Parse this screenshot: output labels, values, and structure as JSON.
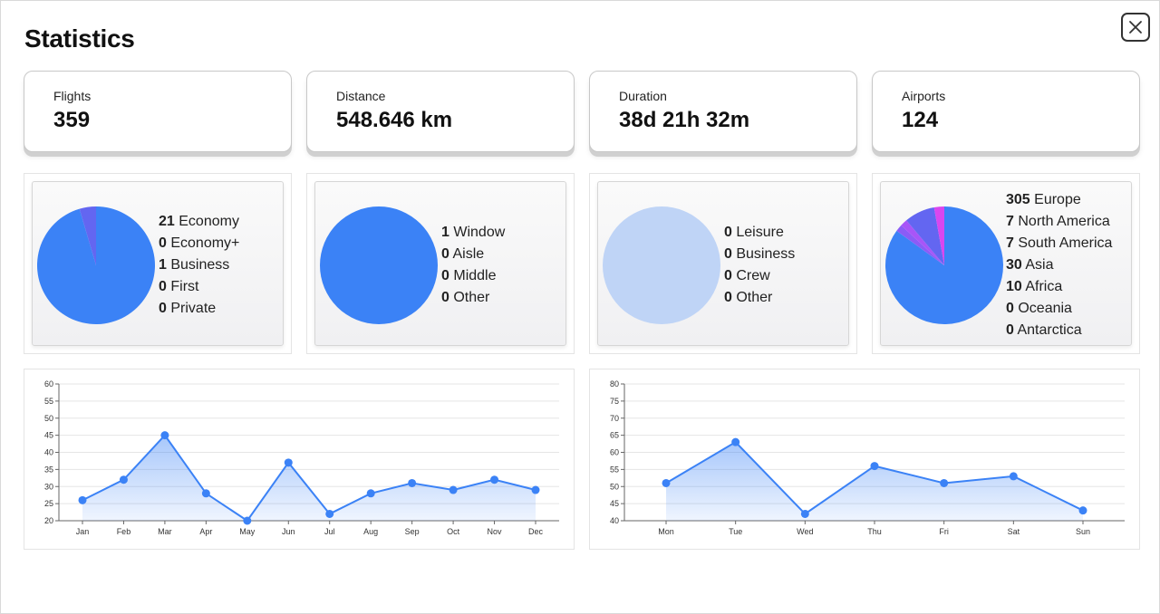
{
  "header": {
    "title": "Statistics",
    "close_icon": "close-icon"
  },
  "stats": [
    {
      "label": "Flights",
      "value": "359"
    },
    {
      "label": "Distance",
      "value": "548.646 km"
    },
    {
      "label": "Duration",
      "value": "38d 21h 32m"
    },
    {
      "label": "Airports",
      "value": "124"
    }
  ],
  "pies": {
    "seat_class": {
      "items": [
        {
          "count": "21",
          "label": "Economy"
        },
        {
          "count": "0",
          "label": "Economy+"
        },
        {
          "count": "1",
          "label": "Business"
        },
        {
          "count": "0",
          "label": "First"
        },
        {
          "count": "0",
          "label": "Private"
        }
      ],
      "colors": [
        "#3b82f6",
        "#4f6fe8",
        "#6366f1",
        "#8b5cf6",
        "#a855f7"
      ]
    },
    "seat_type": {
      "items": [
        {
          "count": "1",
          "label": "Window"
        },
        {
          "count": "0",
          "label": "Aisle"
        },
        {
          "count": "0",
          "label": "Middle"
        },
        {
          "count": "0",
          "label": "Other"
        }
      ],
      "colors": [
        "#3b82f6",
        "#6366f1",
        "#8b5cf6",
        "#a855f7"
      ]
    },
    "reason": {
      "items": [
        {
          "count": "0",
          "label": "Leisure"
        },
        {
          "count": "0",
          "label": "Business"
        },
        {
          "count": "0",
          "label": "Crew"
        },
        {
          "count": "0",
          "label": "Other"
        }
      ],
      "empty_color": "#bfd4f6"
    },
    "continents": {
      "items": [
        {
          "count": "305",
          "label": "Europe"
        },
        {
          "count": "7",
          "label": "North America"
        },
        {
          "count": "7",
          "label": "South America"
        },
        {
          "count": "30",
          "label": "Asia"
        },
        {
          "count": "10",
          "label": "Africa"
        },
        {
          "count": "0",
          "label": "Oceania"
        },
        {
          "count": "0",
          "label": "Antarctica"
        }
      ],
      "colors": [
        "#3b82f6",
        "#8b5cf6",
        "#a855f7",
        "#6366f1",
        "#d946ef",
        "#c026d3",
        "#9333ea"
      ]
    }
  },
  "chart_data": [
    {
      "type": "area",
      "title": "",
      "categories": [
        "Jan",
        "Feb",
        "Mar",
        "Apr",
        "May",
        "Jun",
        "Jul",
        "Aug",
        "Sep",
        "Oct",
        "Nov",
        "Dec"
      ],
      "values": [
        26,
        32,
        45,
        28,
        20,
        37,
        22,
        28,
        31,
        29,
        32,
        29
      ],
      "ylim": [
        20,
        60
      ],
      "yticks": [
        "20",
        "25",
        "30",
        "35",
        "40",
        "45",
        "50",
        "55",
        "60"
      ],
      "grid": true,
      "color": "#3b82f6"
    },
    {
      "type": "area",
      "title": "",
      "categories": [
        "Mon",
        "Tue",
        "Wed",
        "Thu",
        "Fri",
        "Sat",
        "Sun"
      ],
      "values": [
        51,
        63,
        42,
        56,
        51,
        53,
        43
      ],
      "ylim": [
        40,
        80
      ],
      "yticks": [
        "40",
        "45",
        "50",
        "55",
        "60",
        "65",
        "70",
        "75",
        "80"
      ],
      "grid": true,
      "color": "#3b82f6"
    }
  ]
}
